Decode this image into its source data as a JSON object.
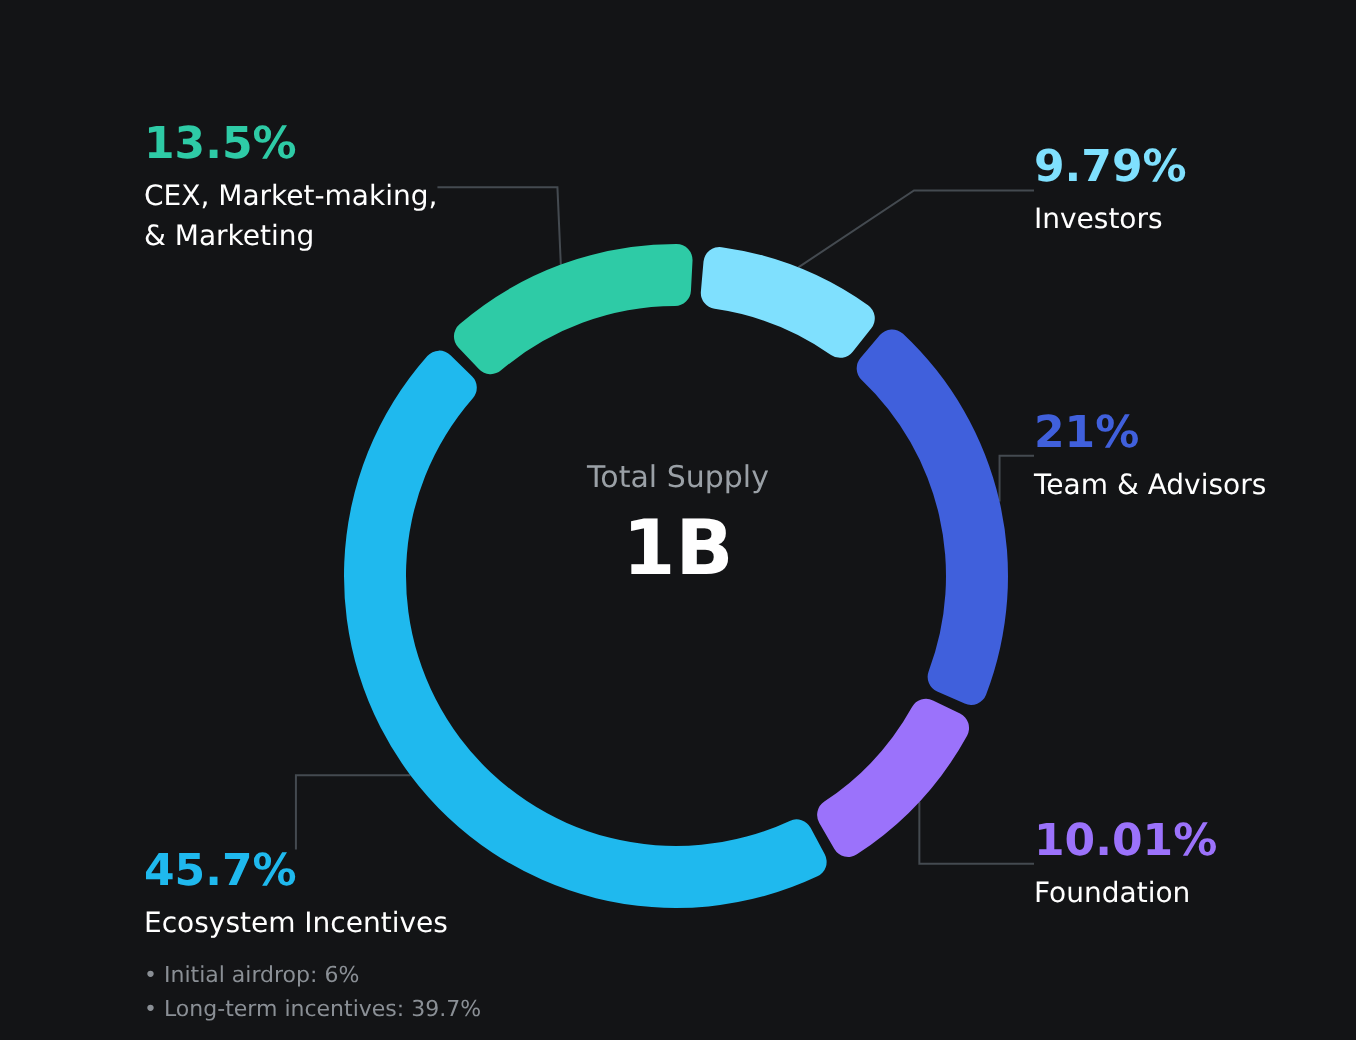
{
  "chart_data": {
    "type": "donut",
    "title": "Total Supply",
    "categories": [
      "Investors",
      "Team & Advisors",
      "Foundation",
      "Ecosystem Incentives",
      "CEX, Market-making,\n& Marketing"
    ],
    "values": [
      9.79,
      21,
      10.01,
      45.7,
      13.5
    ],
    "value_labels": [
      "9.79%",
      "21%",
      "10.01%",
      "45.7%",
      "13.5%"
    ],
    "colors": [
      "#7fe0fe",
      "#4060dc",
      "#9b72fb",
      "#1fb9ee",
      "#2ecba6"
    ],
    "annotations": [
      "1B",
      "• Initial airdrop: 6%",
      "• Long-term incentives: 39.7%"
    ],
    "legend": false
  }
}
